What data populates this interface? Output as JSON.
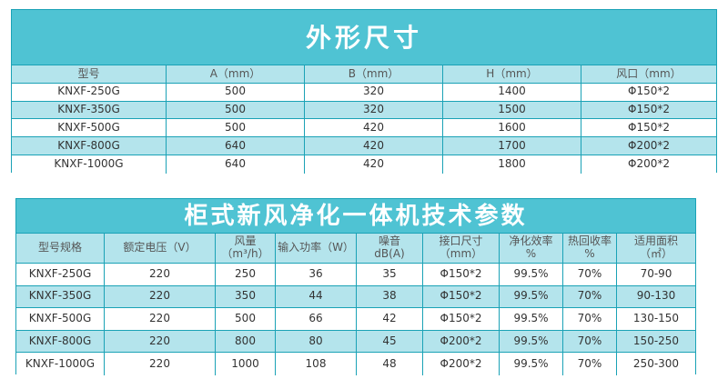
{
  "dimensions": {
    "title": "外形尺寸",
    "headers": [
      "型号",
      "A（mm）",
      "B（mm）",
      "H（mm）",
      "风口（mm）"
    ],
    "rows": [
      [
        "KNXF-250G",
        "500",
        "320",
        "1400",
        "Φ150*2"
      ],
      [
        "KNXF-350G",
        "500",
        "320",
        "1500",
        "Φ150*2"
      ],
      [
        "KNXF-500G",
        "500",
        "420",
        "1600",
        "Φ150*2"
      ],
      [
        "KNXF-800G",
        "640",
        "420",
        "1700",
        "Φ200*2"
      ],
      [
        "KNXF-1000G",
        "640",
        "420",
        "1800",
        "Φ200*2"
      ]
    ],
    "shaded_rows": [
      false,
      true,
      false,
      true,
      false
    ]
  },
  "specs": {
    "title": "柜式新风净化一体机技术参数",
    "headers": [
      "型号规格",
      "额定电压（V）",
      "风量\n（m³/h）",
      "输入功率（W）",
      "噪音\ndB(A)",
      "接口尺寸\n（mm）",
      "净化效率\n%",
      "热回收率\n%",
      "适用面积\n（㎡）"
    ],
    "rows": [
      [
        "KNXF-250G",
        "220",
        "250",
        "36",
        "35",
        "Φ150*2",
        "99.5%",
        "70%",
        "70-90"
      ],
      [
        "KNXF-350G",
        "220",
        "350",
        "44",
        "38",
        "Φ150*2",
        "99.5%",
        "70%",
        "90-130"
      ],
      [
        "KNXF-500G",
        "220",
        "500",
        "66",
        "42",
        "Φ150*2",
        "99.5%",
        "70%",
        "130-150"
      ],
      [
        "KNXF-800G",
        "220",
        "800",
        "80",
        "45",
        "Φ200*2",
        "99.5%",
        "70%",
        "150-250"
      ],
      [
        "KNXF-1000G",
        "220",
        "1000",
        "108",
        "48",
        "Φ200*2",
        "99.5%",
        "70%",
        "250-300"
      ]
    ],
    "shaded_rows": [
      false,
      true,
      false,
      true,
      false
    ]
  },
  "colors": {
    "banner": "#4fc3d3",
    "shade": "#b4e4ec",
    "border": "#1aa2b6"
  }
}
